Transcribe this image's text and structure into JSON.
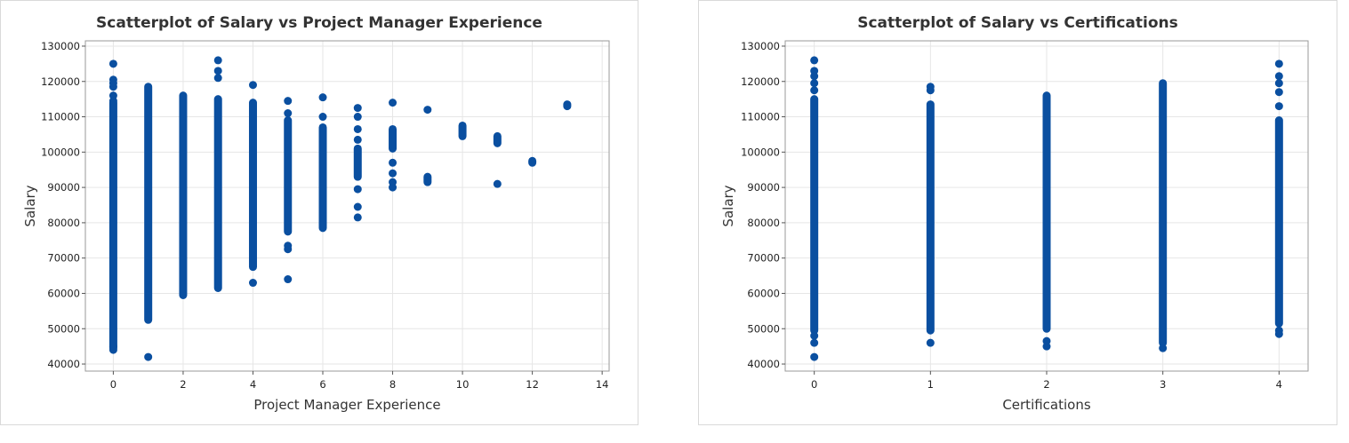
{
  "colors": {
    "marker": "#0a4fa0"
  },
  "chart_data": [
    {
      "type": "scatter",
      "title": "Scatterplot of Salary vs Project Manager Experience",
      "xlabel": "Project Manager Experience",
      "ylabel": "Salary",
      "xlim": [
        -0.8,
        14.2
      ],
      "ylim": [
        38000,
        131500
      ],
      "xticks": [
        0,
        2,
        4,
        6,
        8,
        10,
        12,
        14
      ],
      "yticks": [
        40000,
        50000,
        60000,
        70000,
        80000,
        90000,
        100000,
        110000,
        120000,
        130000
      ],
      "grid": true,
      "columns": [
        {
          "x": 0,
          "dense_range": [
            44500,
            114000
          ],
          "points": [
            44000,
            45000,
            114500,
            116000,
            118500,
            119500,
            120500,
            125000
          ]
        },
        {
          "x": 1,
          "dense_range": [
            52500,
            118500
          ],
          "points": [
            42000
          ]
        },
        {
          "x": 2,
          "dense_range": [
            59500,
            116000
          ],
          "points": []
        },
        {
          "x": 3,
          "dense_range": [
            61500,
            115000
          ],
          "points": [
            121000,
            123000,
            126000
          ]
        },
        {
          "x": 4,
          "dense_range": [
            67500,
            114000
          ],
          "points": [
            63000,
            119000
          ]
        },
        {
          "x": 5,
          "dense_range": [
            77500,
            109000
          ],
          "points": [
            64000,
            72500,
            73500,
            111000,
            114500
          ]
        },
        {
          "x": 6,
          "dense_range": [
            78500,
            107000
          ],
          "points": [
            110000,
            115500
          ]
        },
        {
          "x": 7,
          "dense_range": [
            93000,
            101000
          ],
          "points": [
            81500,
            84500,
            89500,
            103500,
            106500,
            110000,
            112500
          ]
        },
        {
          "x": 8,
          "dense_range": [
            101000,
            106500
          ],
          "points": [
            90000,
            91500,
            94000,
            97000,
            114000
          ]
        },
        {
          "x": 9,
          "dense_range": [
            91500,
            93000
          ],
          "points": [
            112000
          ]
        },
        {
          "x": 10,
          "dense_range": [
            104500,
            107500
          ],
          "points": []
        },
        {
          "x": 11,
          "dense_range": [
            102500,
            104500
          ],
          "points": [
            91000
          ]
        },
        {
          "x": 12,
          "dense_range": [
            97000,
            97500
          ],
          "points": []
        },
        {
          "x": 13,
          "dense_range": [
            113000,
            113500
          ],
          "points": []
        }
      ]
    },
    {
      "type": "scatter",
      "title": "Scatterplot of Salary vs Certifications",
      "xlabel": "Certifications",
      "ylabel": "Salary",
      "xlim": [
        -0.25,
        4.25
      ],
      "ylim": [
        38000,
        131500
      ],
      "xticks": [
        0,
        1,
        2,
        3,
        4
      ],
      "yticks": [
        40000,
        50000,
        60000,
        70000,
        80000,
        90000,
        100000,
        110000,
        120000,
        130000
      ],
      "grid": true,
      "columns": [
        {
          "x": 0,
          "dense_range": [
            49500,
            115000
          ],
          "points": [
            42000,
            46000,
            48000,
            117500,
            119500,
            121500,
            123000,
            126000
          ]
        },
        {
          "x": 1,
          "dense_range": [
            49500,
            113500
          ],
          "points": [
            46000,
            117500,
            118500
          ]
        },
        {
          "x": 2,
          "dense_range": [
            50000,
            116000
          ],
          "points": [
            45000,
            46500
          ]
        },
        {
          "x": 3,
          "dense_range": [
            46000,
            119500
          ],
          "points": [
            44500
          ]
        },
        {
          "x": 4,
          "dense_range": [
            51500,
            109000
          ],
          "points": [
            48500,
            49500,
            113000,
            117000,
            119500,
            121500,
            125000
          ]
        }
      ]
    }
  ]
}
